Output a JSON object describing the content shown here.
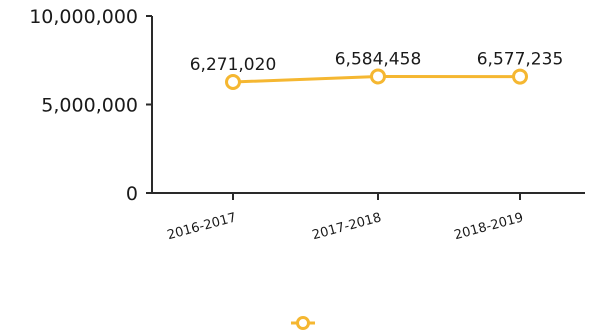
{
  "chart_data": {
    "type": "line",
    "categories": [
      "2016-2017",
      "2017-2018",
      "2018-2019"
    ],
    "series": [
      {
        "values": [
          6271020,
          6584458,
          6577235
        ],
        "labels": [
          "6,271,020",
          "6,584,458",
          "6,577,235"
        ],
        "color": "#f5b731"
      }
    ],
    "yticks": [
      {
        "value": 0,
        "label": "0"
      },
      {
        "value": 5000000,
        "label": "5,000,000"
      },
      {
        "value": 10000000,
        "label": "10,000,000"
      }
    ],
    "ylim": [
      0,
      10000000
    ],
    "grid": false,
    "legend": "bottom-center",
    "axis_color": "#2a2a2a",
    "label_color": "#1a1a1a"
  }
}
